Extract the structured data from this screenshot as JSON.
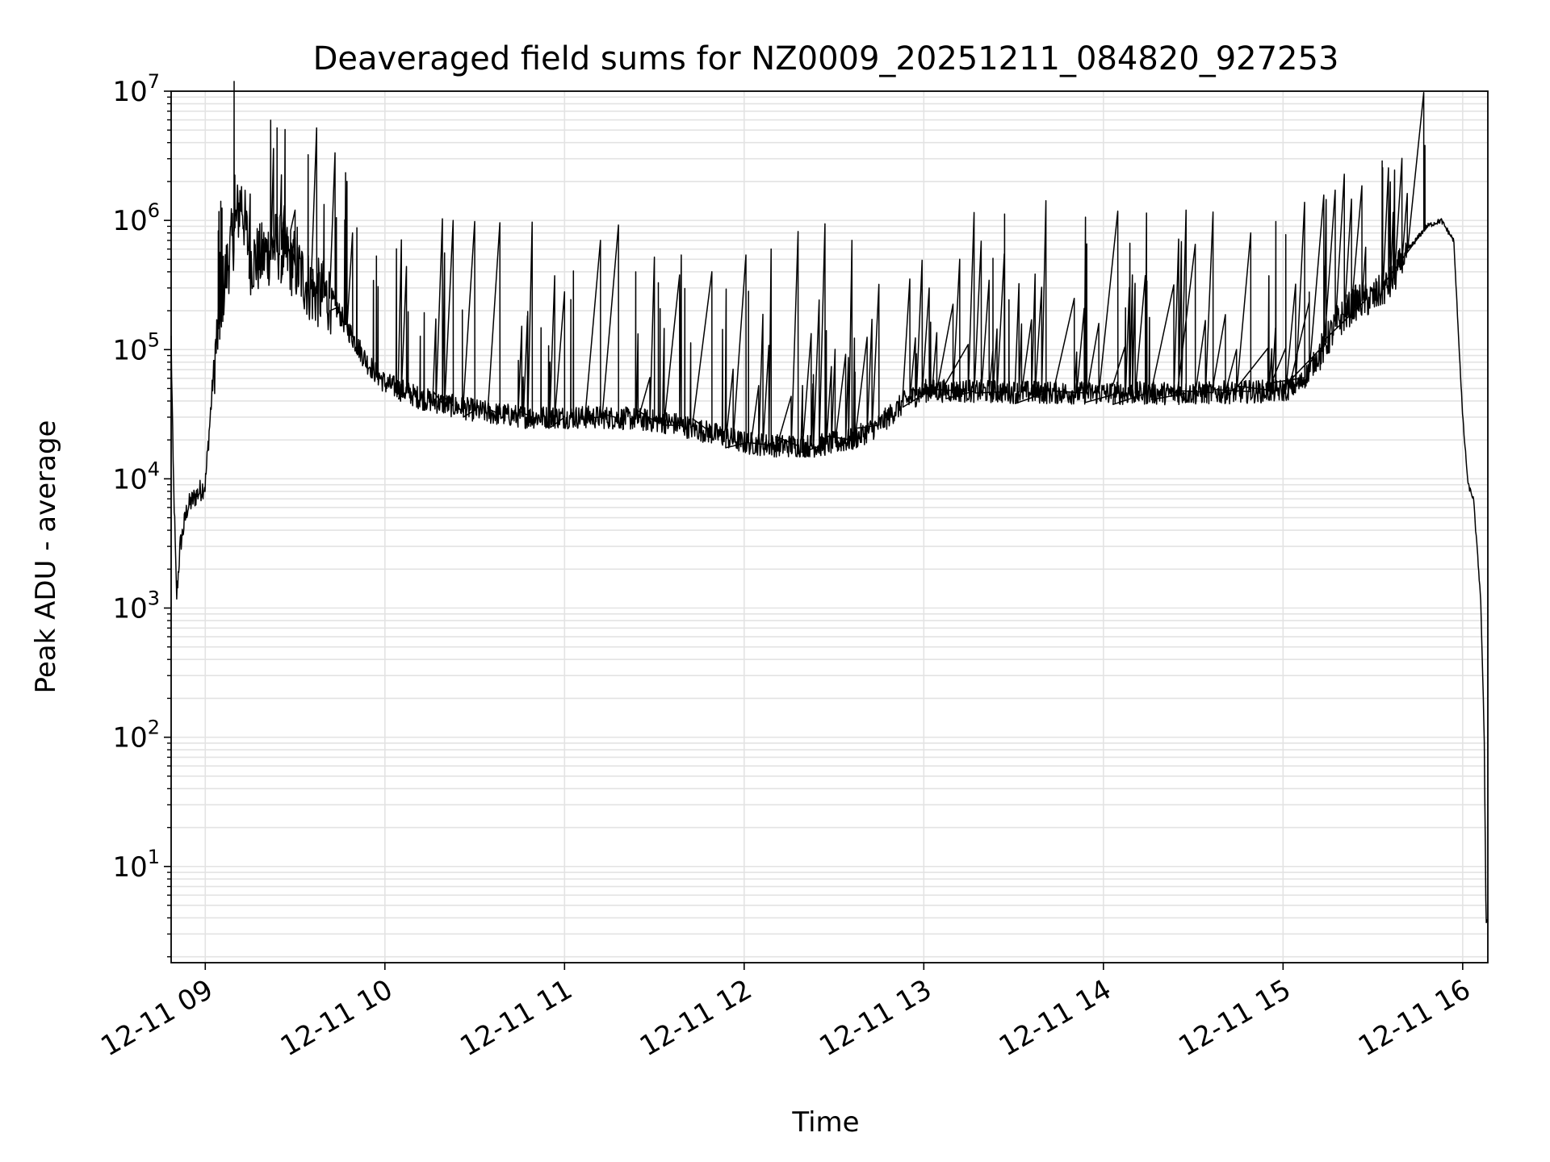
{
  "chart_data": {
    "type": "line",
    "title": "Deaveraged field sums for NZ0009_20251211_084820_927253",
    "xlabel": "Time",
    "ylabel": "Peak ADU - average",
    "yscale": "log",
    "xlim_hours": [
      8.81,
      16.14
    ],
    "ylim": [
      1.8,
      10000000
    ],
    "grid": true,
    "x_ticks": [
      {
        "hour": 9,
        "label": "12-11 09"
      },
      {
        "hour": 10,
        "label": "12-11 10"
      },
      {
        "hour": 11,
        "label": "12-11 11"
      },
      {
        "hour": 12,
        "label": "12-11 12"
      },
      {
        "hour": 13,
        "label": "12-11 13"
      },
      {
        "hour": 14,
        "label": "12-11 14"
      },
      {
        "hour": 15,
        "label": "12-11 15"
      },
      {
        "hour": 16,
        "label": "12-11 16"
      }
    ],
    "y_ticks": [
      {
        "value": 10,
        "base": "10",
        "exp": "1"
      },
      {
        "value": 100,
        "base": "10",
        "exp": "2"
      },
      {
        "value": 1000,
        "base": "10",
        "exp": "3"
      },
      {
        "value": 10000,
        "base": "10",
        "exp": "4"
      },
      {
        "value": 100000,
        "base": "10",
        "exp": "5"
      },
      {
        "value": 1000000,
        "base": "10",
        "exp": "6"
      },
      {
        "value": 10000000,
        "base": "10",
        "exp": "7"
      }
    ],
    "series": [
      {
        "name": "Peak ADU - average",
        "color": "#000000",
        "baseline": [
          [
            8.81,
            120000
          ],
          [
            8.82,
            15000
          ],
          [
            8.84,
            1200
          ],
          [
            8.86,
            3000
          ],
          [
            8.9,
            6000
          ],
          [
            8.95,
            7500
          ],
          [
            9.0,
            9000
          ],
          [
            9.05,
            80000
          ],
          [
            9.1,
            300000
          ],
          [
            9.15,
            700000
          ],
          [
            9.2,
            1500000
          ],
          [
            9.25,
            500000
          ],
          [
            9.3,
            500000
          ],
          [
            9.4,
            650000
          ],
          [
            9.5,
            450000
          ],
          [
            9.6,
            280000
          ],
          [
            9.7,
            250000
          ],
          [
            9.8,
            140000
          ],
          [
            9.9,
            80000
          ],
          [
            10.0,
            55000
          ],
          [
            10.2,
            42000
          ],
          [
            10.4,
            36000
          ],
          [
            10.6,
            32000
          ],
          [
            10.8,
            30000
          ],
          [
            11.0,
            30000
          ],
          [
            11.2,
            30000
          ],
          [
            11.4,
            29000
          ],
          [
            11.6,
            27000
          ],
          [
            11.8,
            23000
          ],
          [
            12.0,
            19000
          ],
          [
            12.2,
            18000
          ],
          [
            12.4,
            18000
          ],
          [
            12.6,
            20000
          ],
          [
            12.75,
            26000
          ],
          [
            12.9,
            40000
          ],
          [
            13.0,
            48000
          ],
          [
            13.2,
            48000
          ],
          [
            13.5,
            47000
          ],
          [
            14.0,
            46000
          ],
          [
            14.5,
            46000
          ],
          [
            15.0,
            48000
          ],
          [
            15.1,
            55000
          ],
          [
            15.2,
            90000
          ],
          [
            15.3,
            160000
          ],
          [
            15.4,
            230000
          ],
          [
            15.5,
            250000
          ],
          [
            15.6,
            330000
          ],
          [
            15.7,
            600000
          ],
          [
            15.8,
            900000
          ],
          [
            15.88,
            1000000
          ],
          [
            15.95,
            700000
          ],
          [
            16.0,
            30000
          ],
          [
            16.03,
            9000
          ],
          [
            16.06,
            7000
          ],
          [
            16.1,
            1200
          ],
          [
            16.12,
            100
          ],
          [
            16.13,
            3.8
          ],
          [
            16.14,
            3.8
          ]
        ],
        "spikes": [
          [
            9.09,
            150000
          ],
          [
            9.25,
            1600000
          ],
          [
            9.38,
            3600000
          ],
          [
            9.44,
            1300000
          ],
          [
            9.5,
            1200000
          ],
          [
            9.62,
            5200000
          ],
          [
            9.73,
            1050000
          ],
          [
            9.82,
            800000
          ],
          [
            10.12,
            440000
          ],
          [
            10.32,
            1030000
          ],
          [
            10.38,
            1000000
          ],
          [
            10.5,
            980000
          ],
          [
            10.64,
            960000
          ],
          [
            10.82,
            970000
          ],
          [
            11.0,
            280000
          ],
          [
            11.2,
            700000
          ],
          [
            11.3,
            920000
          ],
          [
            11.5,
            520000
          ],
          [
            11.65,
            540000
          ],
          [
            11.82,
            400000
          ],
          [
            12.01,
            540000
          ],
          [
            12.15,
            600000
          ],
          [
            12.3,
            820000
          ],
          [
            12.45,
            940000
          ],
          [
            12.6,
            700000
          ],
          [
            12.75,
            320000
          ],
          [
            13.03,
            300000
          ],
          [
            13.2,
            500000
          ],
          [
            13.28,
            1150000
          ],
          [
            13.45,
            1120000
          ],
          [
            13.68,
            1420000
          ],
          [
            13.9,
            1060000
          ],
          [
            14.08,
            1180000
          ],
          [
            14.24,
            1140000
          ],
          [
            14.46,
            1200000
          ],
          [
            14.61,
            1160000
          ],
          [
            14.82,
            800000
          ],
          [
            14.96,
            980000
          ],
          [
            15.12,
            1380000
          ],
          [
            15.24,
            1450000
          ],
          [
            15.46,
            620000
          ],
          [
            15.79,
            3800000
          ]
        ]
      }
    ]
  }
}
